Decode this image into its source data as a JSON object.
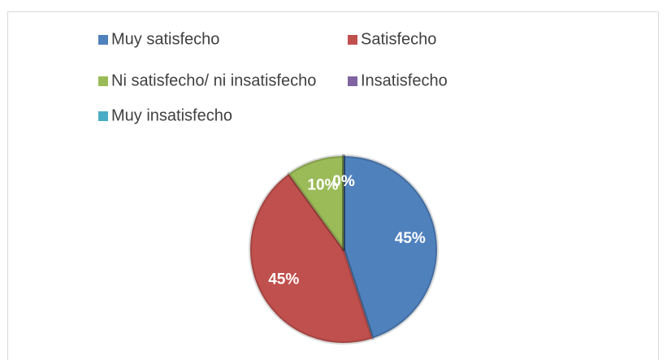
{
  "chart_data": {
    "type": "pie",
    "categories": [
      "Muy satisfecho",
      "Satisfecho",
      "Ni satisfecho/ ni insatisfecho",
      "Insatisfecho",
      "Muy insatisfecho"
    ],
    "values": [
      45,
      45,
      10,
      0,
      0
    ],
    "value_labels": [
      "45%",
      "45%",
      "10%",
      "0%",
      "0%"
    ],
    "colors": [
      "#4f81bd",
      "#c0504d",
      "#9bbb59",
      "#8064a2",
      "#4bacc6"
    ],
    "legend": "top"
  }
}
